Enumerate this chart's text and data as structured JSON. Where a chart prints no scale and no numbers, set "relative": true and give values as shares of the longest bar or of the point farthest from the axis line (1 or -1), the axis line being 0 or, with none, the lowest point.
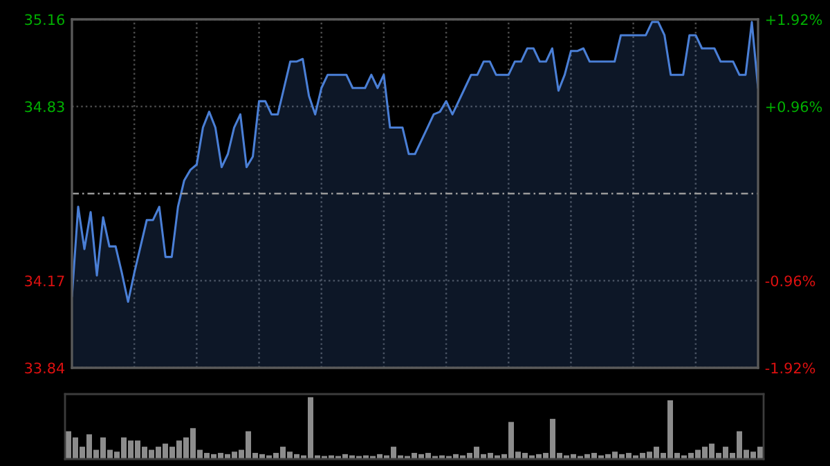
{
  "chart_data": [
    {
      "type": "area",
      "categories": [
        null,
        null,
        null,
        null,
        null,
        null,
        null,
        null,
        null,
        null,
        null,
        null,
        null,
        null,
        null,
        null,
        null,
        null,
        null,
        null,
        null,
        null,
        null,
        null,
        null,
        null,
        null,
        null,
        null,
        null,
        null,
        null,
        null,
        null,
        null,
        null,
        null,
        null,
        null,
        null,
        null,
        null,
        null,
        null,
        null,
        null,
        null,
        null,
        null,
        null,
        null,
        null,
        null,
        null,
        null,
        null,
        null,
        null,
        null,
        null,
        null,
        null,
        null,
        null,
        null,
        null,
        null,
        null,
        null,
        null,
        null,
        null,
        null,
        null,
        null,
        null,
        null,
        null,
        null,
        null,
        null,
        null,
        null,
        null,
        null,
        null,
        null,
        null,
        null,
        null,
        null,
        null,
        null,
        null,
        null,
        null,
        null,
        null,
        null,
        null,
        null,
        null,
        null,
        null,
        null,
        null,
        null,
        null,
        null,
        null,
        null
      ],
      "series": [
        {
          "color": "#4a7fd6",
          "values": [
            34.11,
            34.45,
            34.29,
            34.43,
            34.19,
            34.41,
            34.3,
            34.3,
            34.2,
            34.09,
            34.2,
            34.3,
            34.4,
            34.4,
            34.45,
            34.26,
            34.26,
            34.45,
            34.55,
            34.59,
            34.61,
            34.75,
            34.81,
            34.75,
            34.6,
            34.65,
            34.75,
            34.8,
            34.6,
            34.64,
            34.85,
            34.85,
            34.8,
            34.8,
            34.9,
            35.0,
            35.0,
            35.01,
            34.87,
            34.8,
            34.9,
            34.95,
            34.95,
            34.95,
            34.95,
            34.9,
            34.9,
            34.9,
            34.95,
            34.9,
            34.95,
            34.75,
            34.75,
            34.75,
            34.65,
            34.65,
            34.7,
            34.75,
            34.8,
            34.81,
            34.85,
            34.8,
            34.85,
            34.9,
            34.95,
            34.95,
            35.0,
            35.0,
            34.95,
            34.95,
            34.95,
            35.0,
            35.0,
            35.05,
            35.05,
            35.0,
            35.0,
            35.05,
            34.89,
            34.95,
            35.04,
            35.04,
            35.05,
            35.0,
            35.0,
            35.0,
            35.0,
            35.0,
            35.1,
            35.1,
            35.1,
            35.1,
            35.1,
            35.15,
            35.15,
            35.1,
            34.95,
            34.95,
            34.95,
            35.1,
            35.1,
            35.05,
            35.05,
            35.05,
            35.0,
            35.0,
            35.0,
            34.95,
            34.95,
            35.15,
            34.9
          ]
        }
      ],
      "ylim": [
        33.84,
        35.16
      ],
      "yticks": [
        33.84,
        34.17,
        34.83,
        35.16
      ],
      "y2lim": [
        -1.92,
        1.92
      ],
      "y2ticks": [
        {
          "value": -1.92,
          "label": "-1.92%"
        },
        {
          "value": -0.96,
          "label": "-0.96%"
        },
        {
          "value": 0.96,
          "label": "+0.96%"
        },
        {
          "value": 1.92,
          "label": "+1.92%"
        }
      ],
      "ref_lines": [
        {
          "axis": "y",
          "value": 34.5,
          "color": "#9a9a9a",
          "line_style": "dashed"
        }
      ],
      "grid": true,
      "tick_labels": "y"
    },
    {
      "type": "bar",
      "relative": true,
      "color": "#8c8c8c",
      "tick_labels": false,
      "categories": [
        null,
        null,
        null,
        null,
        null,
        null,
        null,
        null,
        null,
        null,
        null,
        null,
        null,
        null,
        null,
        null,
        null,
        null,
        null,
        null,
        null,
        null,
        null,
        null,
        null,
        null,
        null,
        null,
        null,
        null,
        null,
        null,
        null,
        null,
        null,
        null,
        null,
        null,
        null,
        null,
        null,
        null,
        null,
        null,
        null,
        null,
        null,
        null,
        null,
        null,
        null,
        null,
        null,
        null,
        null,
        null,
        null,
        null,
        null,
        null,
        null,
        null,
        null,
        null,
        null,
        null,
        null,
        null,
        null,
        null,
        null,
        null,
        null,
        null,
        null,
        null,
        null,
        null,
        null,
        null,
        null,
        null,
        null,
        null,
        null,
        null,
        null,
        null,
        null,
        null,
        null,
        null,
        null,
        null,
        null,
        null,
        null,
        null,
        null,
        null,
        null
      ],
      "values": [
        0.45,
        0.35,
        0.2,
        0.4,
        0.15,
        0.35,
        0.15,
        0.12,
        0.35,
        0.3,
        0.3,
        0.2,
        0.15,
        0.2,
        0.25,
        0.2,
        0.3,
        0.35,
        0.5,
        0.15,
        0.1,
        0.08,
        0.1,
        0.08,
        0.12,
        0.15,
        0.45,
        0.1,
        0.08,
        0.06,
        0.1,
        0.2,
        0.12,
        0.08,
        0.06,
        1.0,
        0.06,
        0.05,
        0.06,
        0.05,
        0.08,
        0.06,
        0.05,
        0.06,
        0.05,
        0.08,
        0.06,
        0.2,
        0.06,
        0.05,
        0.1,
        0.08,
        0.1,
        0.05,
        0.06,
        0.05,
        0.08,
        0.06,
        0.1,
        0.2,
        0.08,
        0.1,
        0.06,
        0.08,
        0.6,
        0.12,
        0.1,
        0.06,
        0.08,
        0.1,
        0.65,
        0.1,
        0.06,
        0.08,
        0.05,
        0.08,
        0.1,
        0.06,
        0.08,
        0.12,
        0.08,
        0.1,
        0.06,
        0.1,
        0.12,
        0.2,
        0.1,
        0.95,
        0.1,
        0.06,
        0.1,
        0.15,
        0.2,
        0.25,
        0.1,
        0.2,
        0.1,
        0.45,
        0.15,
        0.12,
        0.2
      ]
    }
  ]
}
